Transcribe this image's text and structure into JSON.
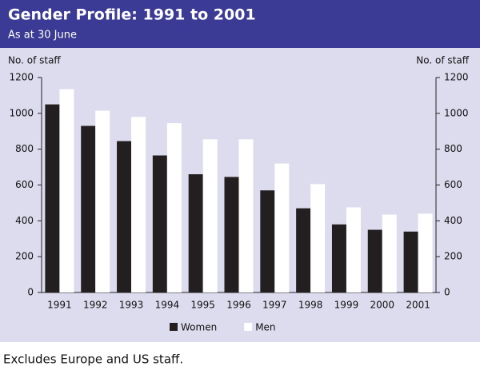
{
  "chart_data": {
    "type": "bar",
    "title": "Gender Profile:  1991 to 2001",
    "subtitle": "As at 30 June",
    "y_label": "No. of staff",
    "y2_label": "No. of staff",
    "footnote": "Excludes Europe and US staff.",
    "categories": [
      "1991",
      "1992",
      "1993",
      "1994",
      "1995",
      "1996",
      "1997",
      "1998",
      "1999",
      "2000",
      "2001"
    ],
    "series": [
      {
        "name": "Women",
        "color": "#231f20",
        "values": [
          1050,
          930,
          845,
          765,
          660,
          645,
          570,
          470,
          380,
          350,
          340
        ]
      },
      {
        "name": "Men",
        "color": "#ffffff",
        "values": [
          1135,
          1015,
          980,
          945,
          855,
          855,
          720,
          605,
          475,
          435,
          440
        ]
      }
    ],
    "ylim": [
      0,
      1200
    ],
    "yticks": [
      0,
      200,
      400,
      600,
      800,
      1000,
      1200
    ],
    "y2lim": [
      0,
      1200
    ],
    "y2ticks": [
      0,
      200,
      400,
      600,
      800,
      1000,
      1200
    ],
    "legend": "bottom"
  }
}
